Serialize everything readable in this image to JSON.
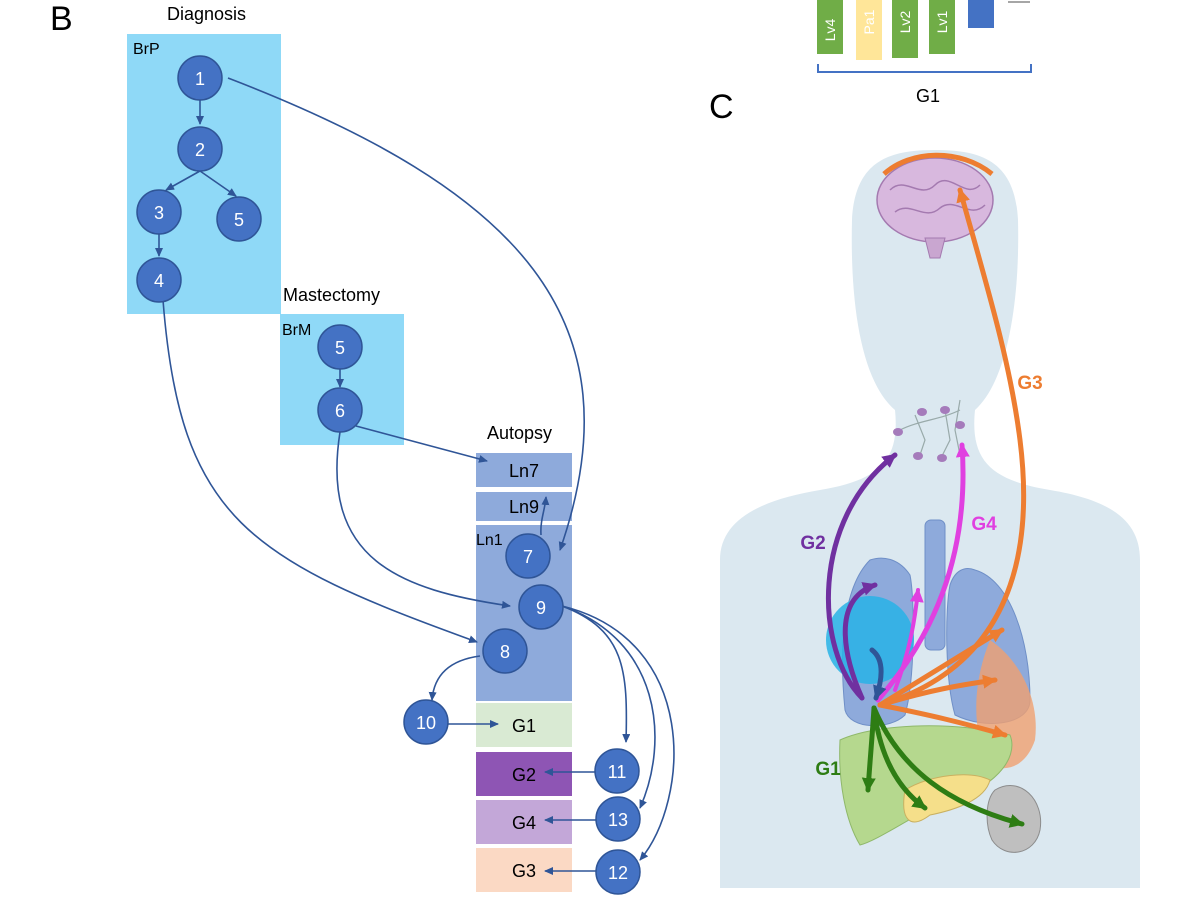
{
  "panel_b": {
    "letter": "B",
    "stage_diagnosis": "Diagnosis",
    "stage_mastectomy": "Mastectomy",
    "stage_autopsy": "Autopsy",
    "box_brp": "BrP",
    "box_brm": "BrM",
    "box_ln1": "Ln1",
    "box_ln7": "Ln7",
    "box_ln9": "Ln9",
    "box_g1": "G1",
    "box_g2": "G2",
    "box_g4": "G4",
    "box_g3": "G3",
    "nodes": {
      "n1": "1",
      "n2": "2",
      "n3": "3",
      "n4": "4",
      "n5a": "5",
      "n5b": "5",
      "n6": "6",
      "n7": "7",
      "n8": "8",
      "n9": "9",
      "n10": "10",
      "n11": "11",
      "n12": "12",
      "n13": "13"
    }
  },
  "panel_top": {
    "bars": [
      "Lv4",
      "Pa1",
      "Lv2",
      "Lv1"
    ],
    "group_label": "G1"
  },
  "panel_c": {
    "letter": "C",
    "g1": "G1",
    "g2": "G2",
    "g3": "G3",
    "g4": "G4"
  },
  "colors": {
    "node": "#4472c4",
    "box_light": "#8fd9f7",
    "box_autopsy": "#8eaadb",
    "g1": "#d9ead3",
    "g2": "#8e55b4",
    "g4": "#c3a7d8",
    "g3": "#fbd9c4",
    "arrow": "#2f5597",
    "g1_arrow": "#2e7d14",
    "g2_arrow": "#7030a0",
    "g3_arrow": "#ed7d31",
    "g4_arrow": "#e040e0"
  }
}
